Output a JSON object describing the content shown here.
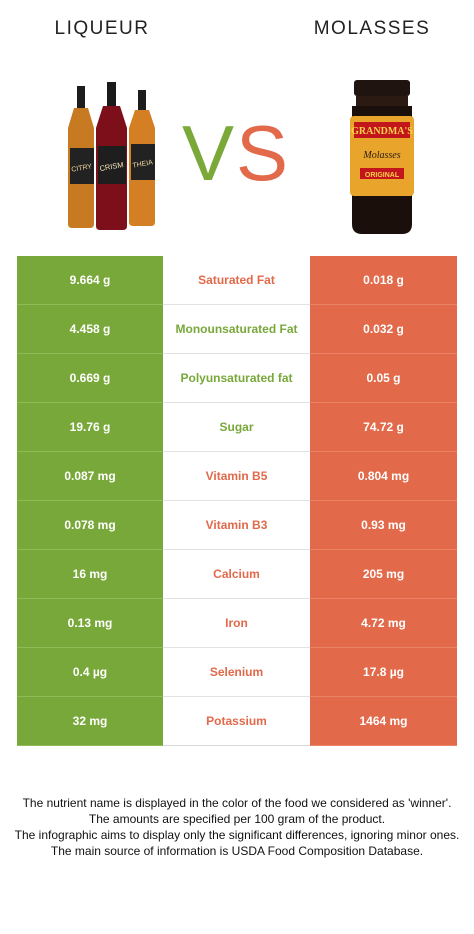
{
  "left_food": {
    "name": "LIQUEUR",
    "bottle_labels": [
      "CITRY",
      "CRISM",
      "THEIA"
    ]
  },
  "right_food": {
    "name": "MOLASSES",
    "jar_label_brand": "GRANDMA'S",
    "jar_label_product": "Molasses",
    "jar_label_variant": "ORIGINAL"
  },
  "vs": {
    "v": "V",
    "s": "S"
  },
  "colors": {
    "left": "#79a83a",
    "right": "#e2694a"
  },
  "rows": [
    {
      "nutrient": "Saturated Fat",
      "left": "9.664 g",
      "right": "0.018 g",
      "winner": "right"
    },
    {
      "nutrient": "Monounsaturated Fat",
      "left": "4.458 g",
      "right": "0.032 g",
      "winner": "left"
    },
    {
      "nutrient": "Polyunsaturated fat",
      "left": "0.669 g",
      "right": "0.05 g",
      "winner": "left"
    },
    {
      "nutrient": "Sugar",
      "left": "19.76 g",
      "right": "74.72 g",
      "winner": "left"
    },
    {
      "nutrient": "Vitamin B5",
      "left": "0.087 mg",
      "right": "0.804 mg",
      "winner": "right"
    },
    {
      "nutrient": "Vitamin B3",
      "left": "0.078 mg",
      "right": "0.93 mg",
      "winner": "right"
    },
    {
      "nutrient": "Calcium",
      "left": "16 mg",
      "right": "205 mg",
      "winner": "right"
    },
    {
      "nutrient": "Iron",
      "left": "0.13 mg",
      "right": "4.72 mg",
      "winner": "right"
    },
    {
      "nutrient": "Selenium",
      "left": "0.4 µg",
      "right": "17.8 µg",
      "winner": "right"
    },
    {
      "nutrient": "Potassium",
      "left": "32 mg",
      "right": "1464 mg",
      "winner": "right"
    }
  ],
  "footnote": [
    "The nutrient name is displayed in the color of the food we considered as 'winner'.",
    "The amounts are specified per 100 gram of the product.",
    "The infographic aims to display only the significant differences, ignoring minor ones.",
    "The main source of information is USDA Food Composition Database."
  ]
}
